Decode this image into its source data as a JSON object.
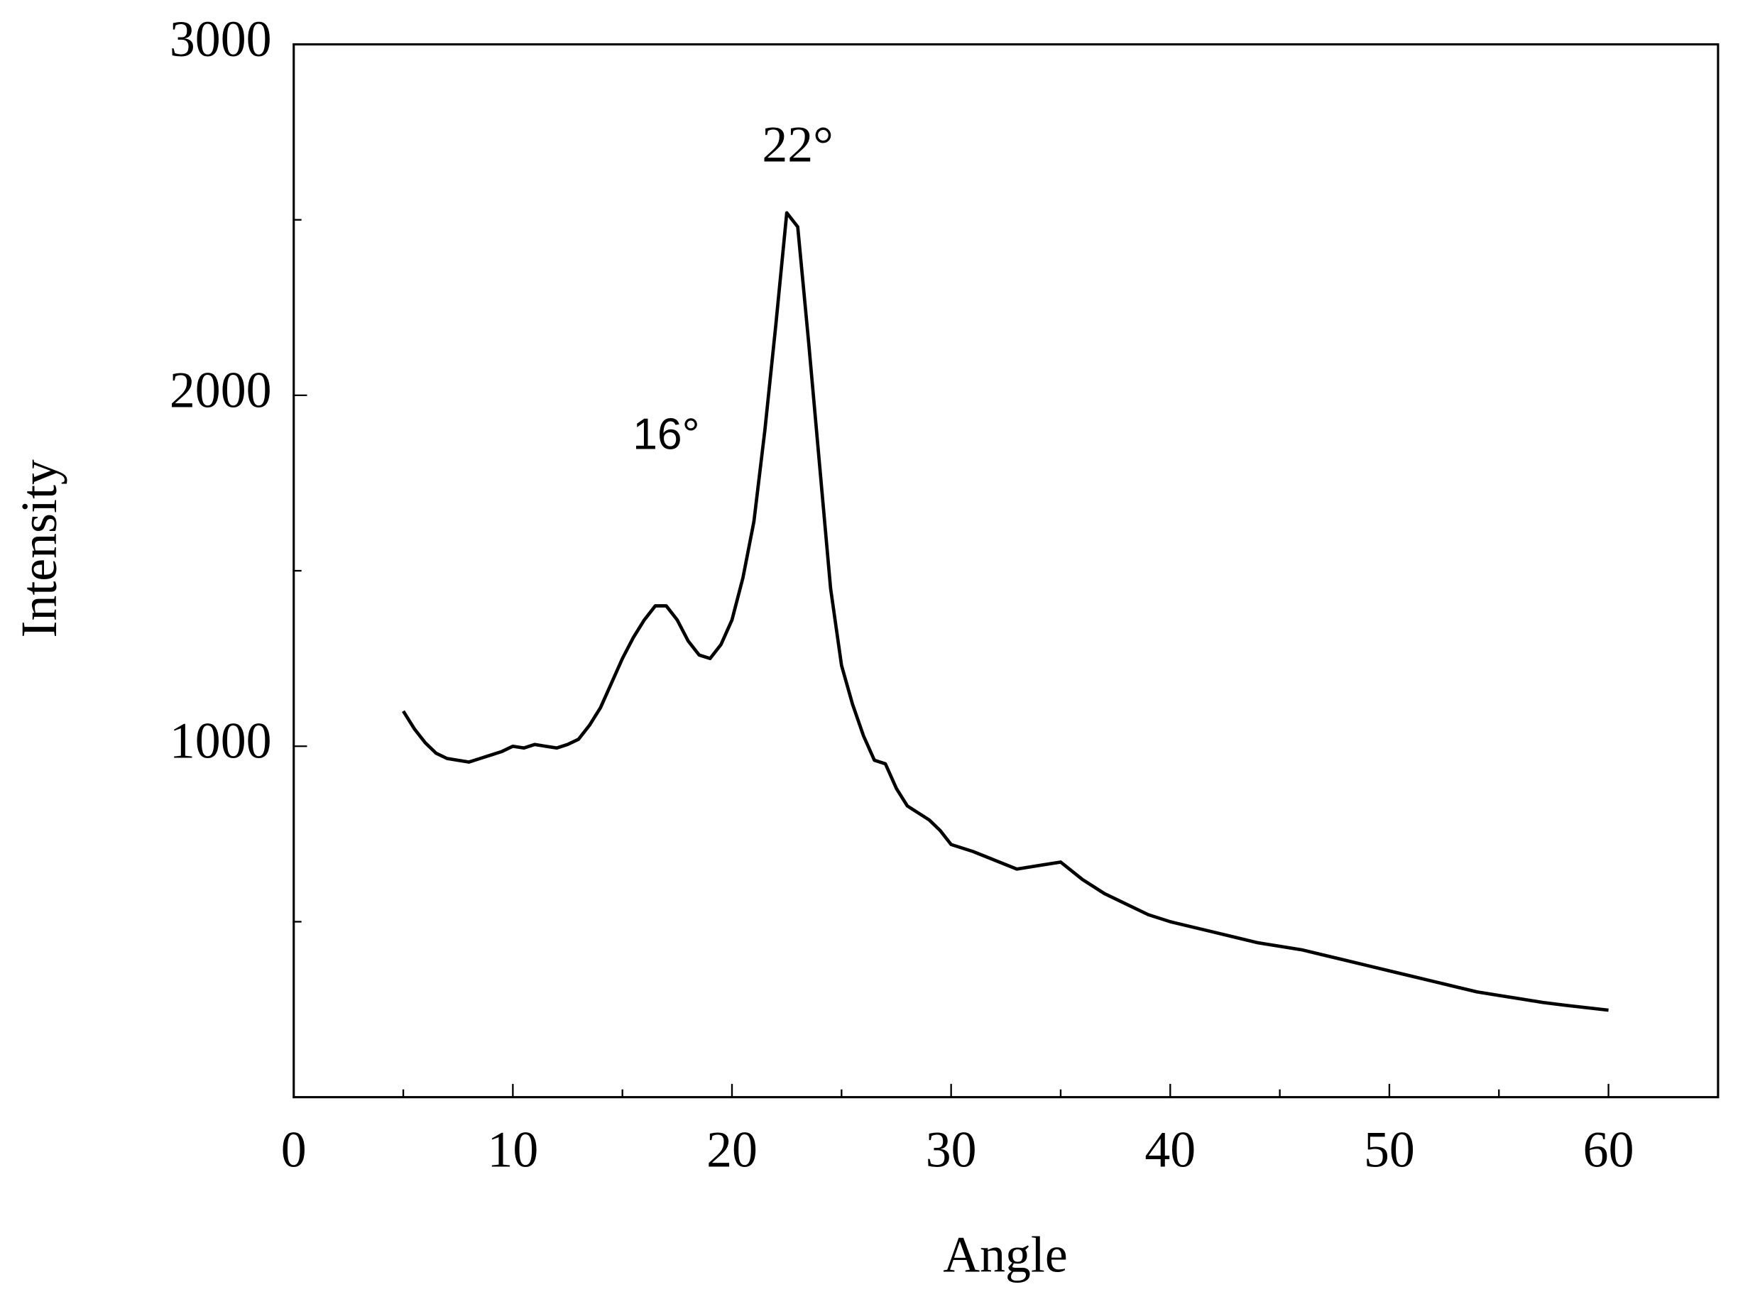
{
  "chart_data": {
    "type": "line",
    "x_label": "Angle",
    "y_label": "Intensity",
    "annotations": [
      {
        "text": "22°",
        "x": 23,
        "y": 2700
      },
      {
        "text": "16°",
        "x": 17,
        "y": 1880
      }
    ],
    "xlim": [
      0,
      65
    ],
    "ylim": [
      0,
      3000
    ],
    "xticks": [
      0,
      10,
      20,
      30,
      40,
      50,
      60
    ],
    "yticks": [
      1000,
      2000,
      3000
    ],
    "xminor": [
      5,
      15,
      25,
      35,
      45,
      55,
      65
    ],
    "yminor": [
      500,
      1500,
      2500
    ],
    "series": [
      {
        "color": "#000000",
        "x": [
          5,
          5.5,
          6,
          6.5,
          7,
          7.5,
          8,
          8.5,
          9,
          9.5,
          10,
          10.5,
          11,
          11.5,
          12,
          12.5,
          13,
          13.5,
          14,
          14.5,
          15,
          15.5,
          16,
          16.5,
          17,
          17.5,
          18,
          18.5,
          19,
          19.5,
          20,
          20.5,
          21,
          21.5,
          22,
          22.5,
          23,
          23.5,
          24,
          24.5,
          25,
          25.5,
          26,
          26.5,
          27,
          27.5,
          28,
          28.5,
          29,
          29.5,
          30,
          31,
          32,
          33,
          34,
          35,
          36,
          37,
          38,
          39,
          40,
          41,
          42,
          43,
          44,
          45,
          46,
          47,
          48,
          49,
          50,
          51,
          52,
          53,
          54,
          55,
          56,
          57,
          58,
          59,
          60
        ],
        "values": [
          1100,
          1050,
          1010,
          980,
          965,
          960,
          955,
          965,
          975,
          985,
          1000,
          995,
          1005,
          1000,
          995,
          1005,
          1020,
          1060,
          1110,
          1180,
          1250,
          1310,
          1360,
          1400,
          1400,
          1360,
          1300,
          1260,
          1250,
          1290,
          1360,
          1480,
          1640,
          1900,
          2200,
          2520,
          2480,
          2150,
          1800,
          1450,
          1230,
          1120,
          1030,
          960,
          950,
          880,
          830,
          810,
          790,
          760,
          720,
          700,
          675,
          650,
          660,
          670,
          620,
          580,
          550,
          520,
          500,
          485,
          470,
          455,
          440,
          430,
          420,
          405,
          390,
          375,
          360,
          345,
          330,
          315,
          300,
          290,
          280,
          270,
          262,
          255,
          248
        ]
      }
    ]
  }
}
